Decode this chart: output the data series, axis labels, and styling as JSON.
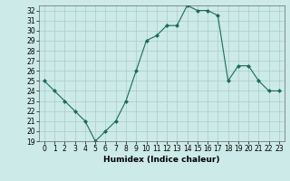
{
  "x": [
    0,
    1,
    2,
    3,
    4,
    5,
    6,
    7,
    8,
    9,
    10,
    11,
    12,
    13,
    14,
    15,
    16,
    17,
    18,
    19,
    20,
    21,
    22,
    23
  ],
  "y": [
    25,
    24,
    23,
    22,
    21,
    19,
    20,
    21,
    23,
    26,
    29,
    29.5,
    30.5,
    30.5,
    32.5,
    32,
    32,
    31.5,
    25,
    26.5,
    26.5,
    25,
    24,
    24
  ],
  "line_color": "#1a6b5a",
  "marker": "D",
  "marker_size": 2,
  "bg_color": "#cceae7",
  "grid_color": "#aaccca",
  "xlabel": "Humidex (Indice chaleur)",
  "ylim": [
    19,
    32.5
  ],
  "xlim": [
    -0.5,
    23.5
  ],
  "yticks": [
    19,
    20,
    21,
    22,
    23,
    24,
    25,
    26,
    27,
    28,
    29,
    30,
    31,
    32
  ],
  "xticks": [
    0,
    1,
    2,
    3,
    4,
    5,
    6,
    7,
    8,
    9,
    10,
    11,
    12,
    13,
    14,
    15,
    16,
    17,
    18,
    19,
    20,
    21,
    22,
    23
  ],
  "title_color": "#1a6b5a",
  "tick_fontsize": 5.5,
  "xlabel_fontsize": 6.5
}
